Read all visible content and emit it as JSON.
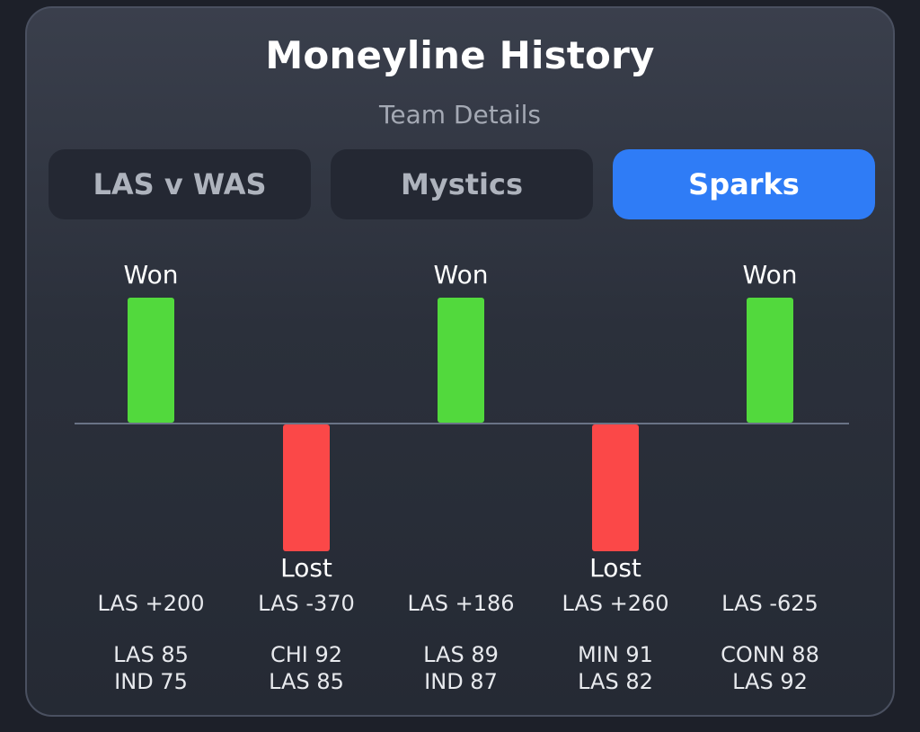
{
  "header": {
    "title": "Moneyline History",
    "subtitle": "Team Details"
  },
  "tabs": [
    {
      "label": "LAS v WAS",
      "active": false
    },
    {
      "label": "Mystics",
      "active": false
    },
    {
      "label": "Sparks",
      "active": true
    }
  ],
  "colors": {
    "won": "#52d93d",
    "lost": "#fb4848",
    "active_tab": "#2f7cf6"
  },
  "games": [
    {
      "result": "Won",
      "line": "LAS +200",
      "score_line1": "LAS 85",
      "score_line2": "IND 75"
    },
    {
      "result": "Lost",
      "line": "LAS -370",
      "score_line1": "CHI 92",
      "score_line2": "LAS 85"
    },
    {
      "result": "Won",
      "line": "LAS +186",
      "score_line1": "LAS 89",
      "score_line2": "IND 87"
    },
    {
      "result": "Lost",
      "line": "LAS +260",
      "score_line1": "MIN 91",
      "score_line2": "LAS 82"
    },
    {
      "result": "Won",
      "line": "LAS -625",
      "score_line1": "CONN 88",
      "score_line2": "LAS 92"
    }
  ]
}
